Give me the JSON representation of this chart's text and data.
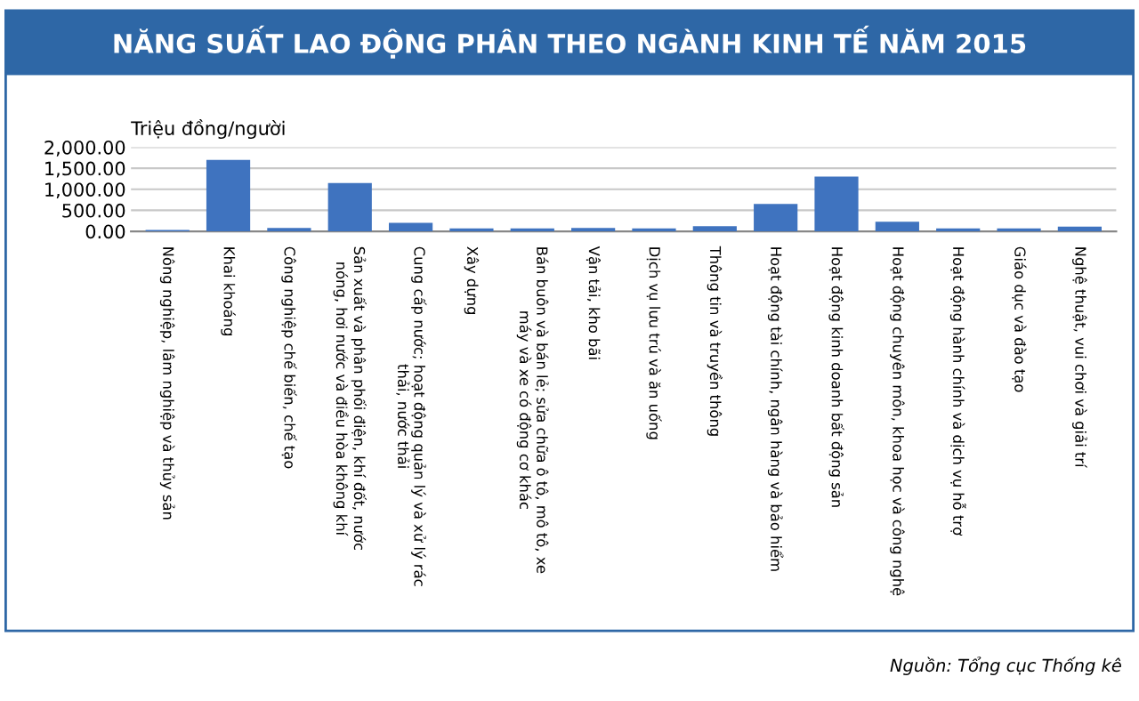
{
  "chart_data": {
    "type": "bar",
    "title": "NĂNG SUẤT LAO ĐỘNG PHÂN THEO NGÀNH KINH TẾ NĂM 2015",
    "ylabel": "Triệu đồng/người",
    "categories": [
      "Nông nghiệp, lâm nghiệp và thủy sản",
      "Khai khoáng",
      "Công nghiệp chế biến, chế tạo",
      "Sản xuất và phân phối điện, khí đốt, nước\nnóng, hơi nước và điều hòa không khí",
      "Cung cấp nước; hoạt động quản lý và xử lý rác\nthải, nước thải",
      "Xây dựng",
      "Bán buôn và bán lẻ; sửa chữa ô tô, mô tô, xe\nmáy và xe có động cơ khác",
      "Vận tải, kho bãi",
      "Dịch vụ lưu trú và ăn uống",
      "Thông tin và truyền thông",
      "Hoạt động tài chính, ngân hàng và bảo hiểm",
      "Hoạt động kinh doanh bất động sản",
      "Hoạt động chuyên môn, khoa học và công nghệ",
      "Hoạt động hành chính và dịch vụ hỗ trợ",
      "Giáo dục và đào tạo",
      "Nghệ thuật, vui chơi và giải trí"
    ],
    "values": [
      30,
      1700,
      80,
      1150,
      200,
      70,
      70,
      80,
      70,
      120,
      650,
      1300,
      230,
      70,
      70,
      110
    ],
    "color": "#3f73bf",
    "ylim": [
      0,
      2000
    ],
    "yticks": [
      {
        "value": 0,
        "label": "0.00"
      },
      {
        "value": 500,
        "label": "500.00"
      },
      {
        "value": 1000,
        "label": "1,000.00"
      },
      {
        "value": 1500,
        "label": "1,500.00"
      },
      {
        "value": 2000,
        "label": "2,000.00"
      }
    ],
    "grid": "y",
    "annotations": [
      "Nguồn: Tổng cục Thống kê"
    ]
  }
}
